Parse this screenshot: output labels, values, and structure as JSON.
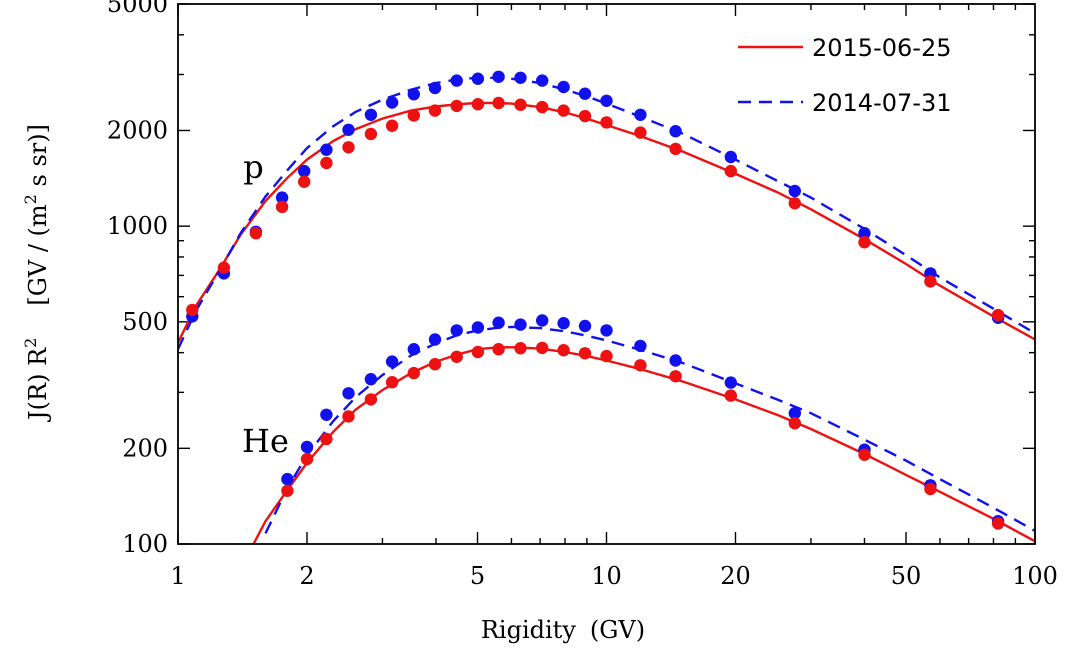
{
  "chart_data": {
    "type": "line",
    "xlabel": "Rigidity",
    "xlabel_unit": "(GV)",
    "ylabel_prefix": "J(R) R",
    "ylabel_exp": "2",
    "ylabel_unit_open": "[GV / (m",
    "ylabel_unit_exp": "2",
    "ylabel_unit_close": " s sr)]",
    "xscale": "log",
    "yscale": "log",
    "xlim": [
      1,
      100
    ],
    "ylim": [
      100,
      5000
    ],
    "xticks": [
      {
        "value": 1,
        "label": "1"
      },
      {
        "value": 2,
        "label": "2"
      },
      {
        "value": 5,
        "label": "5"
      },
      {
        "value": 10,
        "label": "10"
      },
      {
        "value": 20,
        "label": "20"
      },
      {
        "value": 50,
        "label": "50"
      },
      {
        "value": 100,
        "label": "100"
      }
    ],
    "yticks": [
      {
        "value": 100,
        "label": "100"
      },
      {
        "value": 200,
        "label": "200"
      },
      {
        "value": 500,
        "label": "500"
      },
      {
        "value": 1000,
        "label": "1000"
      },
      {
        "value": 2000,
        "label": "2000"
      },
      {
        "value": 5000,
        "label": "5000"
      }
    ],
    "legend_position": "top-right",
    "legend": [
      {
        "label": "2015-06-25",
        "color": "#ee1111",
        "style": "solid"
      },
      {
        "label": "2014-07-31",
        "color": "#1111ee",
        "style": "dashed"
      }
    ],
    "annotations": [
      {
        "text": "p",
        "x": 1.5,
        "y": 1420
      },
      {
        "text": "He",
        "x": 1.6,
        "y": 195
      }
    ],
    "series": [
      {
        "name": "p",
        "date": "2015-06-25",
        "color": "#ee1111",
        "line_style": "solid",
        "curve": {
          "x": [
            1.0,
            1.1,
            1.25,
            1.4,
            1.6,
            1.8,
            2.0,
            2.3,
            2.6,
            3.0,
            3.5,
            4.0,
            4.5,
            5.0,
            5.5,
            6.0,
            7.0,
            8.0,
            9.0,
            10.0,
            12.0,
            15.0,
            20.0,
            25.0,
            30.0,
            40.0,
            50.0,
            60.0,
            80.0,
            100.0
          ],
          "y": [
            430,
            560,
            730,
            940,
            1200,
            1420,
            1620,
            1850,
            2020,
            2180,
            2310,
            2380,
            2420,
            2440,
            2440,
            2430,
            2370,
            2280,
            2180,
            2080,
            1920,
            1720,
            1460,
            1280,
            1130,
            910,
            760,
            650,
            520,
            440
          ]
        },
        "points": {
          "x": [
            1.08,
            1.28,
            1.52,
            1.75,
            1.97,
            2.22,
            2.5,
            2.82,
            3.16,
            3.55,
            3.98,
            4.47,
            5.01,
            5.6,
            6.3,
            7.08,
            7.94,
            8.91,
            10.0,
            12.0,
            14.5,
            19.5,
            27.5,
            40.0,
            57.0,
            82.0
          ],
          "y": [
            545,
            740,
            950,
            1150,
            1380,
            1580,
            1770,
            1950,
            2070,
            2230,
            2310,
            2390,
            2420,
            2440,
            2410,
            2370,
            2310,
            2220,
            2120,
            1970,
            1750,
            1490,
            1180,
            890,
            670,
            525
          ]
        }
      },
      {
        "name": "p",
        "date": "2014-07-31",
        "color": "#1111ee",
        "line_style": "dashed",
        "curve": {
          "x": [
            1.0,
            1.1,
            1.25,
            1.4,
            1.6,
            1.8,
            2.0,
            2.3,
            2.6,
            3.0,
            3.5,
            4.0,
            4.5,
            5.0,
            5.5,
            6.0,
            7.0,
            8.0,
            9.0,
            10.0,
            12.0,
            15.0,
            20.0,
            25.0,
            30.0,
            40.0,
            50.0,
            60.0,
            80.0,
            100.0
          ],
          "y": [
            410,
            540,
            725,
            950,
            1240,
            1500,
            1760,
            2060,
            2290,
            2500,
            2690,
            2820,
            2900,
            2930,
            2930,
            2910,
            2820,
            2690,
            2560,
            2430,
            2210,
            1960,
            1620,
            1390,
            1230,
            980,
            810,
            690,
            550,
            460
          ]
        },
        "points": {
          "x": [
            1.08,
            1.28,
            1.52,
            1.75,
            1.97,
            2.22,
            2.5,
            2.82,
            3.16,
            3.55,
            3.98,
            4.47,
            5.01,
            5.6,
            6.3,
            7.08,
            7.94,
            8.91,
            10.0,
            12.0,
            14.5,
            19.5,
            27.5,
            40.0,
            57.0,
            82.0
          ],
          "y": [
            520,
            710,
            960,
            1230,
            1490,
            1740,
            2010,
            2240,
            2450,
            2600,
            2720,
            2870,
            2910,
            2950,
            2930,
            2870,
            2740,
            2610,
            2480,
            2240,
            1990,
            1650,
            1290,
            950,
            710,
            515
          ]
        }
      },
      {
        "name": "He",
        "date": "2015-06-25",
        "color": "#ee1111",
        "line_style": "solid",
        "curve": {
          "x": [
            1.5,
            1.6,
            1.8,
            2.0,
            2.3,
            2.6,
            3.0,
            3.5,
            4.0,
            4.5,
            5.0,
            5.5,
            6.0,
            7.0,
            8.0,
            9.0,
            10.0,
            12.0,
            15.0,
            20.0,
            25.0,
            30.0,
            40.0,
            50.0,
            60.0,
            80.0,
            100.0
          ],
          "y": [
            100,
            118,
            148,
            180,
            225,
            265,
            305,
            345,
            375,
            395,
            410,
            415,
            416,
            412,
            402,
            390,
            378,
            355,
            325,
            285,
            255,
            230,
            192,
            165,
            146,
            120,
            102
          ]
        },
        "points": {
          "x": [
            1.8,
            2.0,
            2.22,
            2.5,
            2.82,
            3.16,
            3.55,
            3.98,
            4.47,
            5.01,
            5.6,
            6.3,
            7.08,
            7.94,
            8.91,
            10.0,
            12.0,
            14.5,
            19.5,
            27.5,
            40.0,
            57.0,
            82.0
          ],
          "y": [
            147,
            185,
            214,
            252,
            285,
            323,
            345,
            368,
            388,
            402,
            410,
            413,
            414,
            407,
            398,
            390,
            365,
            337,
            293,
            240,
            191,
            149,
            116
          ]
        }
      },
      {
        "name": "He",
        "date": "2014-07-31",
        "color": "#1111ee",
        "line_style": "dashed",
        "curve": {
          "x": [
            1.6,
            1.8,
            2.0,
            2.3,
            2.6,
            3.0,
            3.5,
            4.0,
            4.5,
            5.0,
            5.5,
            6.0,
            7.0,
            8.0,
            9.0,
            10.0,
            12.0,
            15.0,
            20.0,
            25.0,
            30.0,
            40.0,
            50.0,
            60.0,
            80.0,
            100.0
          ],
          "y": [
            108,
            150,
            190,
            243,
            290,
            340,
            392,
            428,
            455,
            470,
            478,
            482,
            478,
            467,
            452,
            437,
            408,
            372,
            320,
            285,
            258,
            213,
            183,
            160,
            130,
            110
          ]
        },
        "points": {
          "x": [
            1.8,
            2.0,
            2.22,
            2.5,
            2.82,
            3.16,
            3.55,
            3.98,
            4.47,
            5.01,
            5.6,
            6.3,
            7.08,
            7.94,
            8.91,
            10.0,
            12.0,
            14.5,
            19.5,
            27.5,
            40.0,
            57.0,
            82.0
          ],
          "y": [
            160,
            202,
            255,
            298,
            330,
            375,
            410,
            440,
            470,
            480,
            497,
            490,
            505,
            495,
            485,
            470,
            420,
            378,
            322,
            258,
            198,
            153,
            118
          ]
        }
      }
    ]
  }
}
